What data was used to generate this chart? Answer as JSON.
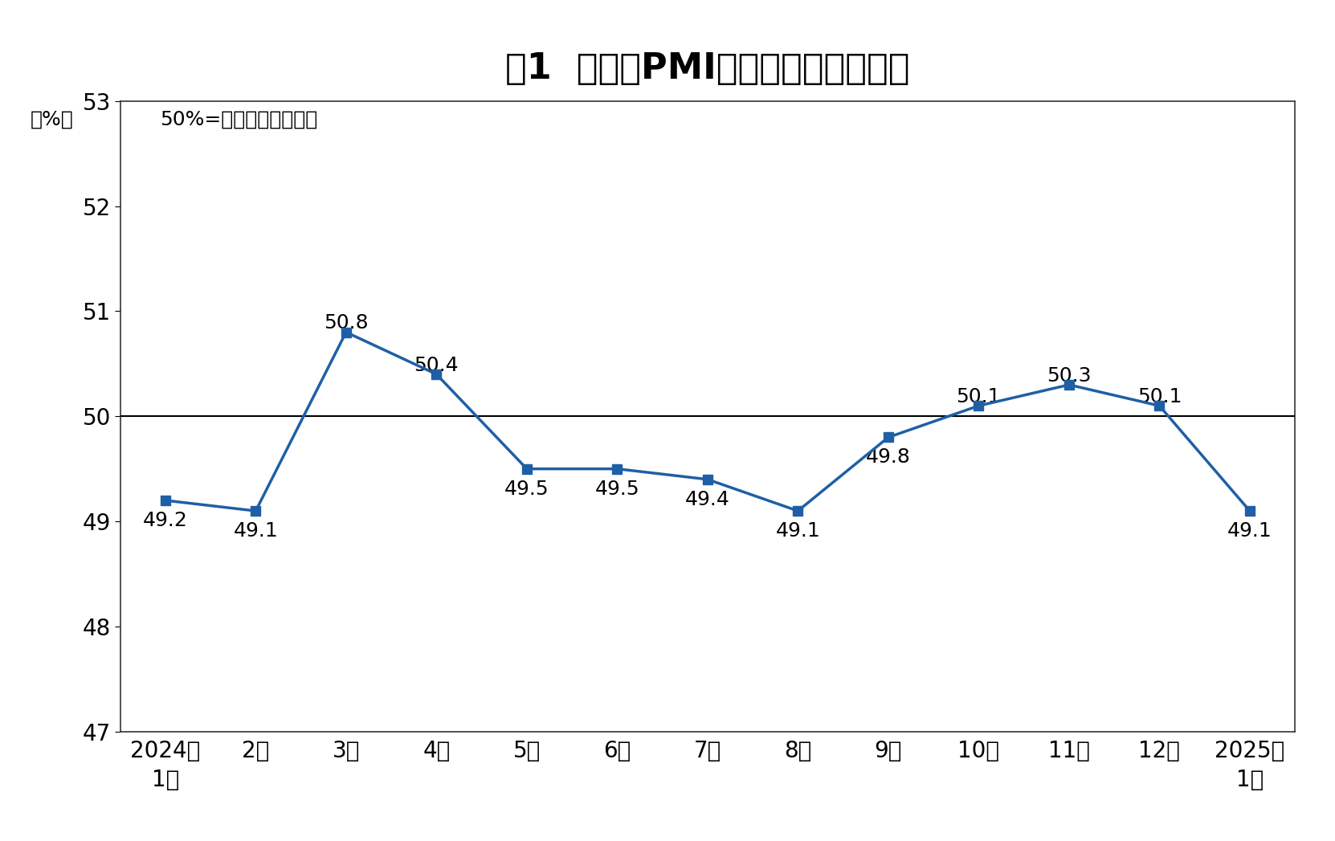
{
  "title": "图1  制造业PMI指数（经季节调整）",
  "ylabel": "（%）",
  "subtitle": "50%=与上月比较无变化",
  "x_labels": [
    "2024年\n1月",
    "2月",
    "3月",
    "4月",
    "5月",
    "6月",
    "7月",
    "8月",
    "9月",
    "10月",
    "11月",
    "12月",
    "2025年\n1月"
  ],
  "values": [
    49.2,
    49.1,
    50.8,
    50.4,
    49.5,
    49.5,
    49.4,
    49.1,
    49.8,
    50.1,
    50.3,
    50.1,
    49.1
  ],
  "ylim": [
    47,
    53
  ],
  "yticks": [
    47,
    48,
    49,
    50,
    51,
    52,
    53
  ],
  "reference_line": 50.0,
  "line_color": "#1f5fa6",
  "marker_style": "s",
  "marker_size": 8,
  "line_width": 2.5,
  "background_color": "#ffffff",
  "plot_bg_color": "#ffffff",
  "border_color": "#333333",
  "title_fontsize": 32,
  "label_fontsize": 18,
  "tick_fontsize": 20,
  "annotation_fontsize": 18,
  "subtitle_fontsize": 18
}
